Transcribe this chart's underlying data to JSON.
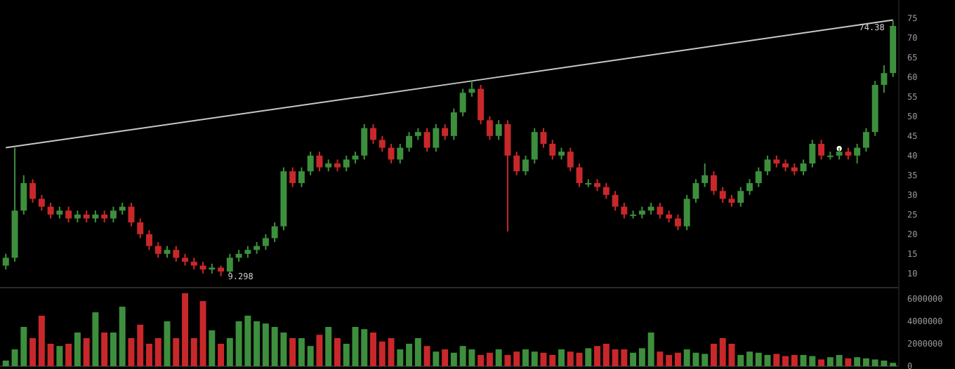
{
  "chart_data": [
    {
      "type": "candlestick",
      "categories": [
        null,
        null,
        null,
        null,
        null,
        null,
        null,
        null,
        null,
        null,
        null,
        null,
        null,
        null,
        null,
        null,
        null,
        null,
        null,
        null,
        null,
        null,
        null,
        null,
        null,
        null,
        null,
        null,
        null,
        null,
        null,
        null,
        null,
        null,
        null,
        null,
        null,
        null,
        null,
        null,
        null,
        null,
        null,
        null,
        null,
        null,
        null,
        null,
        null,
        null,
        null,
        null,
        null,
        null,
        null,
        null,
        null,
        null,
        null,
        null,
        null,
        null,
        null,
        null,
        null,
        null,
        null,
        null,
        null,
        null,
        null,
        null,
        null,
        null,
        null,
        null,
        null,
        null,
        null,
        null,
        null,
        null,
        null,
        null,
        null,
        null,
        null,
        null,
        null,
        null,
        null,
        null,
        null,
        null,
        null,
        null,
        null,
        null,
        null,
        null
      ],
      "ohlc": [
        [
          12,
          15,
          11,
          14
        ],
        [
          14,
          42,
          13,
          26
        ],
        [
          26,
          35,
          25,
          33
        ],
        [
          33,
          34,
          28,
          29
        ],
        [
          29,
          30,
          26,
          27
        ],
        [
          27,
          28,
          24,
          25
        ],
        [
          25,
          27,
          24,
          26
        ],
        [
          26,
          27,
          23,
          24
        ],
        [
          24,
          26,
          23,
          25
        ],
        [
          25,
          26,
          23,
          24
        ],
        [
          24,
          26,
          23,
          25
        ],
        [
          25,
          26,
          23,
          24
        ],
        [
          24,
          27,
          23,
          26
        ],
        [
          26,
          28,
          25,
          27
        ],
        [
          27,
          28,
          22,
          23
        ],
        [
          23,
          24,
          19,
          20
        ],
        [
          20,
          21,
          16,
          17
        ],
        [
          17,
          18,
          14,
          15
        ],
        [
          15,
          17,
          14,
          16
        ],
        [
          16,
          17,
          13,
          14
        ],
        [
          14,
          15,
          12,
          13
        ],
        [
          13,
          14,
          11,
          12
        ],
        [
          12,
          13,
          10,
          11
        ],
        [
          11,
          12.5,
          10,
          11.5
        ],
        [
          11.5,
          12,
          9.298,
          10.5
        ],
        [
          10.5,
          15,
          10,
          14
        ],
        [
          14,
          16,
          13,
          15
        ],
        [
          15,
          17,
          14,
          16
        ],
        [
          16,
          18,
          15,
          17
        ],
        [
          17,
          20,
          16,
          19
        ],
        [
          19,
          23,
          18,
          22
        ],
        [
          22,
          37,
          21,
          36
        ],
        [
          36,
          37,
          32,
          33
        ],
        [
          33,
          37,
          32,
          36
        ],
        [
          36,
          41,
          35,
          40
        ],
        [
          40,
          41,
          36,
          37
        ],
        [
          37,
          39,
          36,
          38
        ],
        [
          38,
          39,
          36,
          37
        ],
        [
          37,
          40,
          36,
          39
        ],
        [
          39,
          41,
          38,
          40
        ],
        [
          40,
          48,
          39,
          47
        ],
        [
          47,
          48,
          43,
          44
        ],
        [
          44,
          45,
          41,
          42
        ],
        [
          42,
          43,
          38,
          39
        ],
        [
          39,
          43,
          38,
          42
        ],
        [
          42,
          46,
          41,
          45
        ],
        [
          45,
          47,
          44,
          46
        ],
        [
          46,
          47,
          41,
          42
        ],
        [
          42,
          48,
          41,
          47
        ],
        [
          47,
          48,
          44,
          45
        ],
        [
          45,
          52,
          44,
          51
        ],
        [
          51,
          57,
          50,
          56
        ],
        [
          56,
          59,
          55,
          57
        ],
        [
          57,
          58,
          48,
          49
        ],
        [
          49,
          50,
          44,
          45
        ],
        [
          45,
          49,
          44,
          48
        ],
        [
          48,
          49,
          20.7,
          40
        ],
        [
          40,
          41,
          35,
          36
        ],
        [
          36,
          40,
          35,
          39
        ],
        [
          39,
          47,
          38,
          46
        ],
        [
          46,
          47,
          42,
          43
        ],
        [
          43,
          44,
          39,
          40
        ],
        [
          40,
          42,
          39,
          41
        ],
        [
          41,
          42,
          36,
          37
        ],
        [
          37,
          38,
          32,
          33
        ],
        [
          33,
          34,
          32,
          33
        ],
        [
          33,
          34,
          31,
          32
        ],
        [
          32,
          33,
          29,
          30
        ],
        [
          30,
          31,
          26,
          27
        ],
        [
          27,
          28,
          24,
          25
        ],
        [
          25,
          26,
          24,
          25
        ],
        [
          25,
          27,
          24,
          26
        ],
        [
          26,
          28,
          25,
          27
        ],
        [
          27,
          28,
          24,
          25
        ],
        [
          25,
          26,
          23,
          24
        ],
        [
          24,
          25,
          21,
          22
        ],
        [
          22,
          30,
          21,
          29
        ],
        [
          29,
          34,
          28,
          33
        ],
        [
          33,
          38,
          32,
          35
        ],
        [
          35,
          36,
          30,
          31
        ],
        [
          31,
          32,
          28,
          29
        ],
        [
          29,
          30,
          27,
          28
        ],
        [
          28,
          32,
          27,
          31
        ],
        [
          31,
          34,
          30,
          33
        ],
        [
          33,
          37,
          32,
          36
        ],
        [
          36,
          40,
          35,
          39
        ],
        [
          39,
          40,
          37,
          38
        ],
        [
          38,
          39,
          36,
          37
        ],
        [
          37,
          38,
          35,
          36
        ],
        [
          36,
          39,
          35,
          38
        ],
        [
          38,
          44,
          37,
          43
        ],
        [
          43,
          44,
          39,
          40
        ],
        [
          40,
          41,
          39,
          40
        ],
        [
          40,
          42,
          39,
          41
        ],
        [
          41,
          42,
          39,
          40
        ],
        [
          40,
          43,
          38,
          42
        ],
        [
          42,
          47,
          41,
          46
        ],
        [
          46,
          59,
          45,
          58
        ],
        [
          58,
          63,
          56,
          61
        ],
        [
          61,
          74.38,
          60,
          73
        ]
      ],
      "colors": [
        "#3d8f3d",
        "#3d8f3d",
        "#3d8f3d",
        "#c8282a",
        "#c8282a",
        "#c8282a",
        "#3d8f3d",
        "#c8282a",
        "#3d8f3d",
        "#c8282a",
        "#3d8f3d",
        "#c8282a",
        "#3d8f3d",
        "#3d8f3d",
        "#c8282a",
        "#c8282a",
        "#c8282a",
        "#c8282a",
        "#3d8f3d",
        "#c8282a",
        "#c8282a",
        "#c8282a",
        "#c8282a",
        "#3d8f3d",
        "#c8282a",
        "#3d8f3d",
        "#3d8f3d",
        "#3d8f3d",
        "#3d8f3d",
        "#3d8f3d",
        "#3d8f3d",
        "#3d8f3d",
        "#c8282a",
        "#3d8f3d",
        "#3d8f3d",
        "#c8282a",
        "#3d8f3d",
        "#c8282a",
        "#3d8f3d",
        "#3d8f3d",
        "#3d8f3d",
        "#c8282a",
        "#c8282a",
        "#c8282a",
        "#3d8f3d",
        "#3d8f3d",
        "#3d8f3d",
        "#c8282a",
        "#3d8f3d",
        "#c8282a",
        "#3d8f3d",
        "#3d8f3d",
        "#3d8f3d",
        "#c8282a",
        "#c8282a",
        "#3d8f3d",
        "#c8282a",
        "#c8282a",
        "#3d8f3d",
        "#3d8f3d",
        "#c8282a",
        "#c8282a",
        "#3d8f3d",
        "#c8282a",
        "#c8282a",
        "#3d8f3d",
        "#c8282a",
        "#c8282a",
        "#c8282a",
        "#c8282a",
        "#3d8f3d",
        "#3d8f3d",
        "#3d8f3d",
        "#c8282a",
        "#c8282a",
        "#c8282a",
        "#3d8f3d",
        "#3d8f3d",
        "#3d8f3d",
        "#c8282a",
        "#c8282a",
        "#c8282a",
        "#3d8f3d",
        "#3d8f3d",
        "#3d8f3d",
        "#3d8f3d",
        "#c8282a",
        "#c8282a",
        "#c8282a",
        "#3d8f3d",
        "#3d8f3d",
        "#c8282a",
        "#3d8f3d",
        "#3d8f3d",
        "#c8282a",
        "#3d8f3d",
        "#3d8f3d",
        "#3d8f3d",
        "#3d8f3d",
        "#3d8f3d"
      ],
      "series": [
        {
          "type": "line",
          "color": "#c8c8c8",
          "values": [
            42,
            null,
            null,
            null,
            null,
            null,
            null,
            null,
            null,
            null,
            null,
            null,
            null,
            null,
            null,
            null,
            null,
            null,
            null,
            null,
            null,
            null,
            null,
            null,
            null,
            null,
            null,
            null,
            null,
            null,
            null,
            null,
            null,
            null,
            null,
            null,
            null,
            null,
            null,
            null,
            null,
            null,
            null,
            null,
            null,
            null,
            null,
            null,
            null,
            null,
            null,
            null,
            59,
            null,
            null,
            null,
            null,
            null,
            null,
            null,
            null,
            null,
            null,
            null,
            null,
            null,
            null,
            null,
            null,
            null,
            null,
            null,
            null,
            null,
            null,
            null,
            null,
            null,
            null,
            null,
            null,
            null,
            null,
            null,
            null,
            null,
            null,
            null,
            null,
            null,
            null,
            null,
            null,
            null,
            null,
            null,
            null,
            null,
            null,
            74.5
          ]
        },
        {
          "type": "scatter",
          "color": "#ffffff",
          "values": [
            null,
            null,
            null,
            null,
            null,
            null,
            null,
            null,
            null,
            null,
            null,
            null,
            null,
            null,
            null,
            null,
            null,
            null,
            null,
            null,
            null,
            null,
            null,
            null,
            null,
            null,
            null,
            null,
            null,
            null,
            null,
            null,
            null,
            null,
            null,
            null,
            null,
            null,
            null,
            null,
            null,
            null,
            null,
            null,
            null,
            null,
            null,
            null,
            null,
            null,
            null,
            null,
            null,
            null,
            null,
            null,
            null,
            null,
            null,
            null,
            null,
            null,
            null,
            null,
            null,
            null,
            null,
            null,
            null,
            null,
            null,
            null,
            null,
            null,
            null,
            null,
            null,
            null,
            null,
            null,
            null,
            null,
            null,
            null,
            null,
            null,
            null,
            null,
            null,
            null,
            null,
            null,
            null,
            41.8,
            null,
            null,
            null,
            null,
            null,
            null
          ]
        }
      ],
      "annotations": [
        "9.298",
        "74.38"
      ],
      "ylim": [
        6.4,
        79.6
      ],
      "yticks": [
        10,
        15,
        20,
        25,
        30,
        35,
        40,
        45,
        50,
        55,
        60,
        65,
        70,
        75
      ],
      "tick_labels": "y"
    },
    {
      "type": "bar",
      "categories": [
        null,
        null,
        null,
        null,
        null,
        null,
        null,
        null,
        null,
        null,
        null,
        null,
        null,
        null,
        null,
        null,
        null,
        null,
        null,
        null,
        null,
        null,
        null,
        null,
        null,
        null,
        null,
        null,
        null,
        null,
        null,
        null,
        null,
        null,
        null,
        null,
        null,
        null,
        null,
        null,
        null,
        null,
        null,
        null,
        null,
        null,
        null,
        null,
        null,
        null,
        null,
        null,
        null,
        null,
        null,
        null,
        null,
        null,
        null,
        null,
        null,
        null,
        null,
        null,
        null,
        null,
        null,
        null,
        null,
        null,
        null,
        null,
        null,
        null,
        null,
        null,
        null,
        null,
        null,
        null,
        null,
        null,
        null,
        null,
        null,
        null,
        null,
        null,
        null,
        null,
        null,
        null,
        null,
        null,
        null,
        null,
        null,
        null,
        null,
        null
      ],
      "values": [
        500000,
        1500000,
        3500000,
        2500000,
        4500000,
        2000000,
        1800000,
        2000000,
        3000000,
        2500000,
        4800000,
        3000000,
        3000000,
        5300000,
        2500000,
        3700000,
        2000000,
        2500000,
        4000000,
        2500000,
        6500000,
        2500000,
        5800000,
        3200000,
        2000000,
        2500000,
        4000000,
        4500000,
        4000000,
        3800000,
        3500000,
        3000000,
        2500000,
        2500000,
        1800000,
        2800000,
        3500000,
        2500000,
        2000000,
        3500000,
        3300000,
        3000000,
        2200000,
        2500000,
        1500000,
        2000000,
        2500000,
        1800000,
        1300000,
        1500000,
        1200000,
        1800000,
        1500000,
        1000000,
        1200000,
        1500000,
        1000000,
        1300000,
        1500000,
        1300000,
        1200000,
        1000000,
        1500000,
        1300000,
        1200000,
        1600000,
        1800000,
        2000000,
        1500000,
        1500000,
        1200000,
        1600000,
        3000000,
        1300000,
        1000000,
        1200000,
        1500000,
        1200000,
        1100000,
        2000000,
        2500000,
        2000000,
        1000000,
        1300000,
        1200000,
        1000000,
        1100000,
        900000,
        1000000,
        1000000,
        900000,
        600000,
        800000,
        1000000,
        700000,
        800000,
        700000,
        600000,
        500000,
        300000
      ],
      "colors": [
        "#3d8f3d",
        "#3d8f3d",
        "#3d8f3d",
        "#c8282a",
        "#c8282a",
        "#c8282a",
        "#3d8f3d",
        "#c8282a",
        "#3d8f3d",
        "#c8282a",
        "#3d8f3d",
        "#c8282a",
        "#3d8f3d",
        "#3d8f3d",
        "#c8282a",
        "#c8282a",
        "#c8282a",
        "#c8282a",
        "#3d8f3d",
        "#c8282a",
        "#c8282a",
        "#c8282a",
        "#c8282a",
        "#3d8f3d",
        "#c8282a",
        "#3d8f3d",
        "#3d8f3d",
        "#3d8f3d",
        "#3d8f3d",
        "#3d8f3d",
        "#3d8f3d",
        "#3d8f3d",
        "#c8282a",
        "#3d8f3d",
        "#3d8f3d",
        "#c8282a",
        "#3d8f3d",
        "#c8282a",
        "#3d8f3d",
        "#3d8f3d",
        "#3d8f3d",
        "#c8282a",
        "#c8282a",
        "#c8282a",
        "#3d8f3d",
        "#3d8f3d",
        "#3d8f3d",
        "#c8282a",
        "#3d8f3d",
        "#c8282a",
        "#3d8f3d",
        "#3d8f3d",
        "#3d8f3d",
        "#c8282a",
        "#c8282a",
        "#3d8f3d",
        "#c8282a",
        "#c8282a",
        "#3d8f3d",
        "#3d8f3d",
        "#c8282a",
        "#c8282a",
        "#3d8f3d",
        "#c8282a",
        "#c8282a",
        "#3d8f3d",
        "#c8282a",
        "#c8282a",
        "#c8282a",
        "#c8282a",
        "#3d8f3d",
        "#3d8f3d",
        "#3d8f3d",
        "#c8282a",
        "#c8282a",
        "#c8282a",
        "#3d8f3d",
        "#3d8f3d",
        "#3d8f3d",
        "#c8282a",
        "#c8282a",
        "#c8282a",
        "#3d8f3d",
        "#3d8f3d",
        "#3d8f3d",
        "#3d8f3d",
        "#c8282a",
        "#c8282a",
        "#c8282a",
        "#3d8f3d",
        "#3d8f3d",
        "#c8282a",
        "#3d8f3d",
        "#3d8f3d",
        "#c8282a",
        "#3d8f3d",
        "#3d8f3d",
        "#3d8f3d",
        "#3d8f3d",
        "#3d8f3d"
      ],
      "ylim": [
        0,
        7000000
      ],
      "yticks": [
        0,
        2000000,
        4000000,
        6000000
      ],
      "tick_labels": "y"
    }
  ]
}
